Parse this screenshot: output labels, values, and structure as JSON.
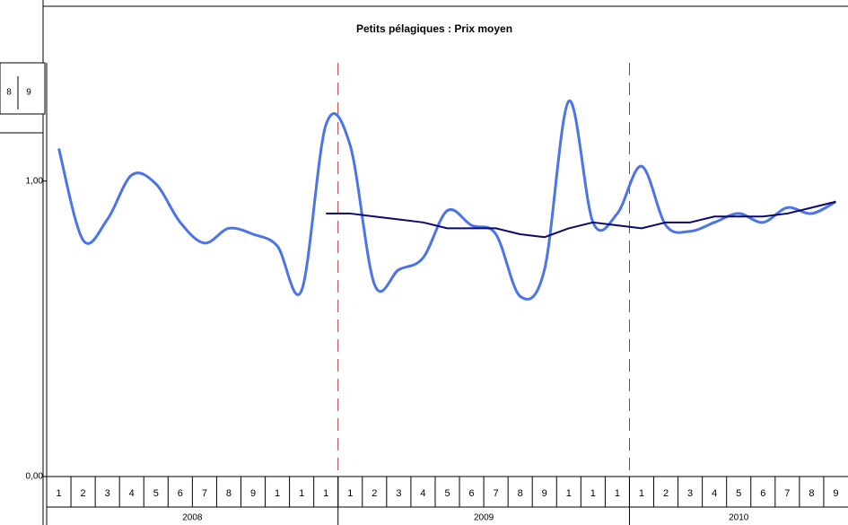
{
  "chart_data": {
    "type": "line",
    "title": "Petits pélagiques : Prix moyen",
    "overlay_cells": [
      "8",
      "9"
    ],
    "categories": [
      "1",
      "2",
      "3",
      "4",
      "5",
      "6",
      "7",
      "8",
      "9",
      "1",
      "1",
      "1",
      "1",
      "2",
      "3",
      "4",
      "5",
      "6",
      "7",
      "8",
      "9",
      "1",
      "1",
      "1",
      "1",
      "2",
      "3",
      "4",
      "5",
      "6",
      "7",
      "8",
      "9"
    ],
    "groups": [
      "2008",
      "2009",
      "2010"
    ],
    "group_sizes": [
      12,
      12,
      9
    ],
    "series": [
      {
        "color": "#4a74e8",
        "smooth": true,
        "width": 3,
        "values": [
          1.11,
          0.8,
          0.87,
          1.02,
          0.99,
          0.86,
          0.79,
          0.84,
          0.82,
          0.78,
          0.63,
          1.19,
          1.12,
          0.65,
          0.7,
          0.74,
          0.9,
          0.85,
          0.82,
          0.61,
          0.7,
          1.27,
          0.86,
          0.89,
          1.05,
          0.85,
          0.83,
          0.86,
          0.89,
          0.86,
          0.91,
          0.89,
          0.93
        ]
      },
      {
        "color": "#0a0a6e",
        "smooth": false,
        "width": 2,
        "values": [
          null,
          null,
          null,
          null,
          null,
          null,
          null,
          null,
          null,
          null,
          null,
          0.89,
          0.89,
          0.88,
          0.87,
          0.86,
          0.84,
          0.84,
          0.84,
          0.82,
          0.81,
          0.84,
          0.86,
          0.85,
          0.84,
          0.86,
          0.86,
          0.88,
          0.88,
          0.88,
          0.89,
          0.91,
          0.93
        ]
      }
    ],
    "ylim": [
      0,
      1.4
    ],
    "yticks": [
      {
        "value": 0,
        "label": "0,00"
      },
      {
        "value": 1,
        "label": "1,00"
      }
    ],
    "year_dividers": true,
    "divider_color": "#b03030"
  }
}
